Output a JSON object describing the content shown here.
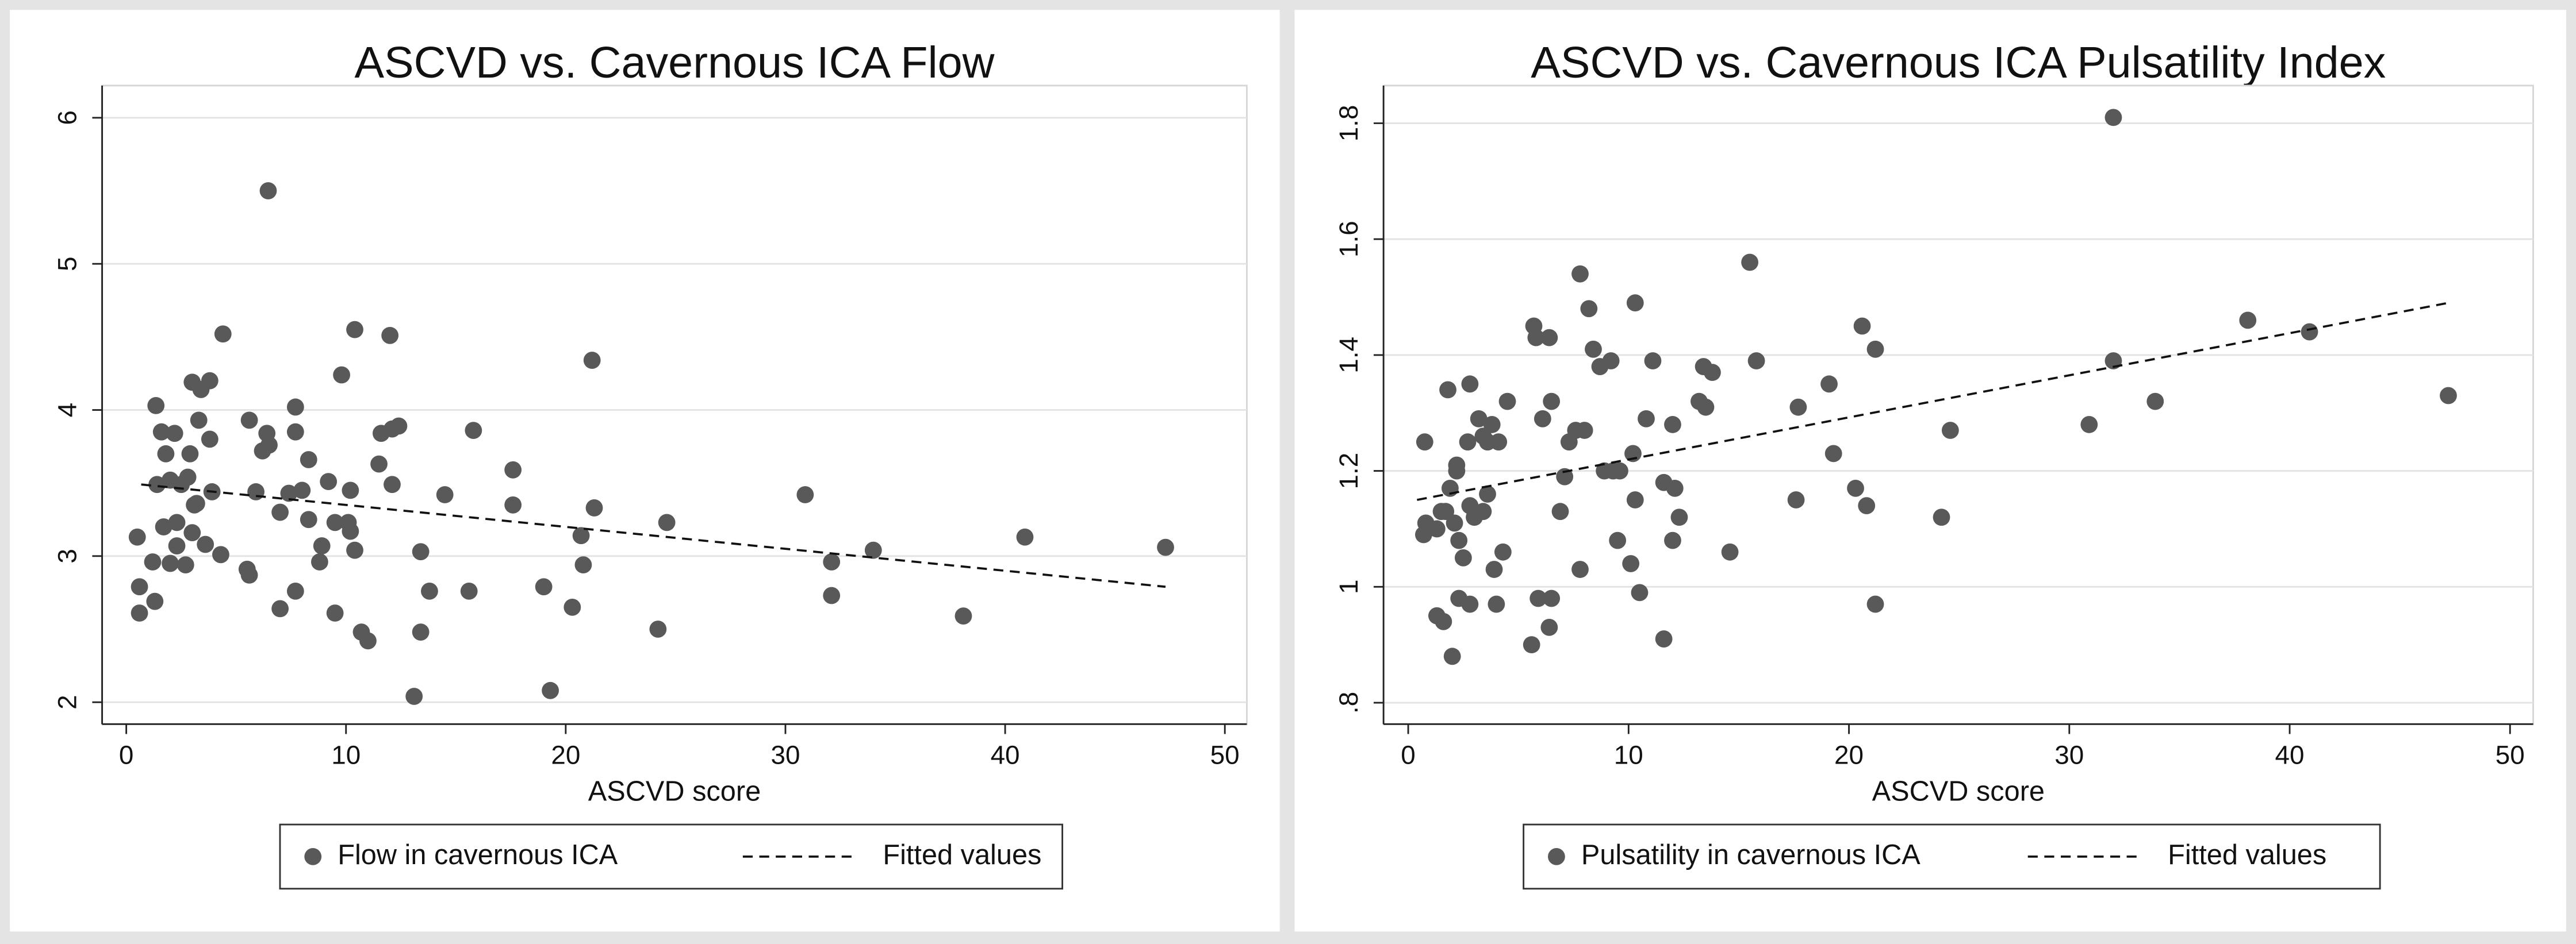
{
  "chart_data": [
    {
      "type": "scatter",
      "title": "ASCVD vs. Cavernous ICA Flow",
      "x_label": "ASCVD score",
      "xlim": [
        -1.1,
        51
      ],
      "xticks": [
        0,
        10,
        20,
        30,
        40,
        50
      ],
      "ylim": [
        1.85,
        6.22
      ],
      "yticks": [
        2,
        3,
        4,
        5,
        6
      ],
      "grid": true,
      "legend": "bottom",
      "series": [
        {
          "name": "Flow in cavernous ICA",
          "color": "#595959",
          "type": "scatter",
          "x": [
            6.46,
            0.5,
            0.6,
            0.6,
            1.2,
            1.3,
            1.35,
            1.4,
            1.6,
            1.7,
            1.8,
            2.0,
            2.0,
            2.2,
            2.3,
            2.3,
            2.5,
            2.7,
            2.8,
            2.9,
            3.0,
            3.0,
            3.1,
            3.2,
            3.3,
            3.4,
            3.6,
            3.8,
            3.8,
            3.9,
            4.3,
            4.4,
            5.5,
            5.6,
            5.6,
            5.9,
            6.2,
            6.4,
            6.5,
            7.0,
            7.0,
            7.4,
            7.7,
            7.7,
            7.7,
            8.0,
            8.3,
            8.3,
            8.8,
            8.9,
            9.2,
            9.5,
            9.5,
            9.8,
            10.1,
            10.2,
            10.2,
            10.4,
            10.4,
            10.7,
            11.0,
            11.5,
            11.6,
            12.0,
            12.1,
            12.1,
            12.4,
            13.1,
            13.4,
            13.4,
            13.8,
            14.5,
            15.6,
            15.8,
            17.6,
            17.6,
            19.0,
            19.3,
            20.3,
            20.7,
            20.8,
            21.2,
            21.3,
            24.2,
            24.6,
            30.9,
            32.1,
            32.1,
            34.0,
            38.1,
            40.9,
            47.3
          ],
          "values": [
            5.5,
            3.13,
            2.79,
            2.61,
            2.96,
            2.69,
            4.03,
            3.49,
            3.85,
            3.2,
            3.7,
            2.95,
            3.52,
            3.84,
            3.07,
            3.23,
            3.49,
            2.94,
            3.54,
            3.7,
            4.19,
            3.16,
            3.35,
            3.36,
            3.93,
            4.14,
            3.08,
            4.2,
            3.8,
            3.44,
            3.01,
            4.52,
            2.91,
            2.87,
            3.93,
            3.44,
            3.72,
            3.84,
            3.76,
            2.64,
            3.3,
            3.43,
            4.02,
            3.85,
            2.76,
            3.45,
            3.66,
            3.25,
            2.96,
            3.07,
            3.51,
            2.61,
            3.23,
            4.24,
            3.23,
            3.17,
            3.45,
            3.04,
            4.55,
            2.48,
            2.42,
            3.63,
            3.84,
            4.51,
            3.49,
            3.87,
            3.89,
            2.04,
            3.03,
            2.48,
            2.76,
            3.42,
            2.76,
            3.86,
            3.59,
            3.35,
            2.79,
            2.08,
            2.65,
            3.14,
            2.94,
            4.34,
            3.33,
            2.5,
            3.23,
            3.42,
            2.96,
            2.73,
            3.04,
            2.59,
            3.13,
            3.06
          ]
        },
        {
          "name": "Fitted values",
          "color": "#111111",
          "type": "line",
          "line_style": "dashed",
          "x": [
            0.68,
            47.3
          ],
          "values": [
            3.49,
            2.79
          ]
        }
      ]
    },
    {
      "type": "scatter",
      "title": "ASCVD vs. Cavernous ICA Pulsatility Index",
      "x_label": "ASCVD score",
      "xlim": [
        -1.12,
        51.05
      ],
      "xticks": [
        0,
        10,
        20,
        30,
        40,
        50
      ],
      "ylim": [
        0.763,
        1.865
      ],
      "yticks": [
        {
          "value": 0.8,
          "label": ".8"
        },
        1,
        1.2,
        1.4,
        1.6,
        1.8
      ],
      "grid": true,
      "legend": "bottom",
      "series": [
        {
          "name": "Pulsatility in cavernous ICA",
          "color": "#595959",
          "type": "scatter",
          "x": [
            32.0,
            0.7,
            0.8,
            0.75,
            1.3,
            1.3,
            1.5,
            1.6,
            1.7,
            1.8,
            1.9,
            2.0,
            2.1,
            2.2,
            2.2,
            2.3,
            2.3,
            2.5,
            2.7,
            2.8,
            2.8,
            2.8,
            3.0,
            3.2,
            3.4,
            3.4,
            3.6,
            3.6,
            3.8,
            3.9,
            4.0,
            4.1,
            4.3,
            4.5,
            5.6,
            5.7,
            5.8,
            5.9,
            6.1,
            6.4,
            6.4,
            6.5,
            6.5,
            6.9,
            7.1,
            7.3,
            7.6,
            7.8,
            7.8,
            8.0,
            8.2,
            8.4,
            8.7,
            8.9,
            9.2,
            9.3,
            9.5,
            9.6,
            10.1,
            10.2,
            10.3,
            10.3,
            10.5,
            10.8,
            11.1,
            11.6,
            11.6,
            12.0,
            12.0,
            12.1,
            12.3,
            13.2,
            13.4,
            13.5,
            13.8,
            14.6,
            15.5,
            15.8,
            17.6,
            17.7,
            19.1,
            19.3,
            20.3,
            20.6,
            20.8,
            21.2,
            21.2,
            24.2,
            24.6,
            30.9,
            32.0,
            33.9,
            38.1,
            40.9,
            47.2
          ],
          "values": [
            1.81,
            1.09,
            1.11,
            1.25,
            0.95,
            1.1,
            1.13,
            0.94,
            1.13,
            1.34,
            1.17,
            0.88,
            1.11,
            1.2,
            1.21,
            0.98,
            1.08,
            1.05,
            1.25,
            1.35,
            1.14,
            0.97,
            1.12,
            1.29,
            1.13,
            1.26,
            1.25,
            1.16,
            1.28,
            1.03,
            0.97,
            1.25,
            1.06,
            1.32,
            0.9,
            1.45,
            1.43,
            0.98,
            1.29,
            0.93,
            1.43,
            1.32,
            0.98,
            1.13,
            1.19,
            1.25,
            1.27,
            1.03,
            1.54,
            1.27,
            1.48,
            1.41,
            1.38,
            1.2,
            1.39,
            1.2,
            1.08,
            1.2,
            1.04,
            1.23,
            1.49,
            1.15,
            0.99,
            1.29,
            1.39,
            1.18,
            0.91,
            1.08,
            1.28,
            1.17,
            1.12,
            1.32,
            1.38,
            1.31,
            1.37,
            1.06,
            1.56,
            1.39,
            1.15,
            1.31,
            1.35,
            1.23,
            1.17,
            1.45,
            1.14,
            1.41,
            0.97,
            1.12,
            1.27,
            1.28,
            1.39,
            1.32,
            1.46,
            1.44,
            1.33
          ]
        },
        {
          "name": "Fitted values",
          "color": "#111111",
          "type": "line",
          "line_style": "dashed",
          "x": [
            0.4,
            47.2
          ],
          "values": [
            1.15,
            1.49
          ]
        }
      ]
    }
  ]
}
